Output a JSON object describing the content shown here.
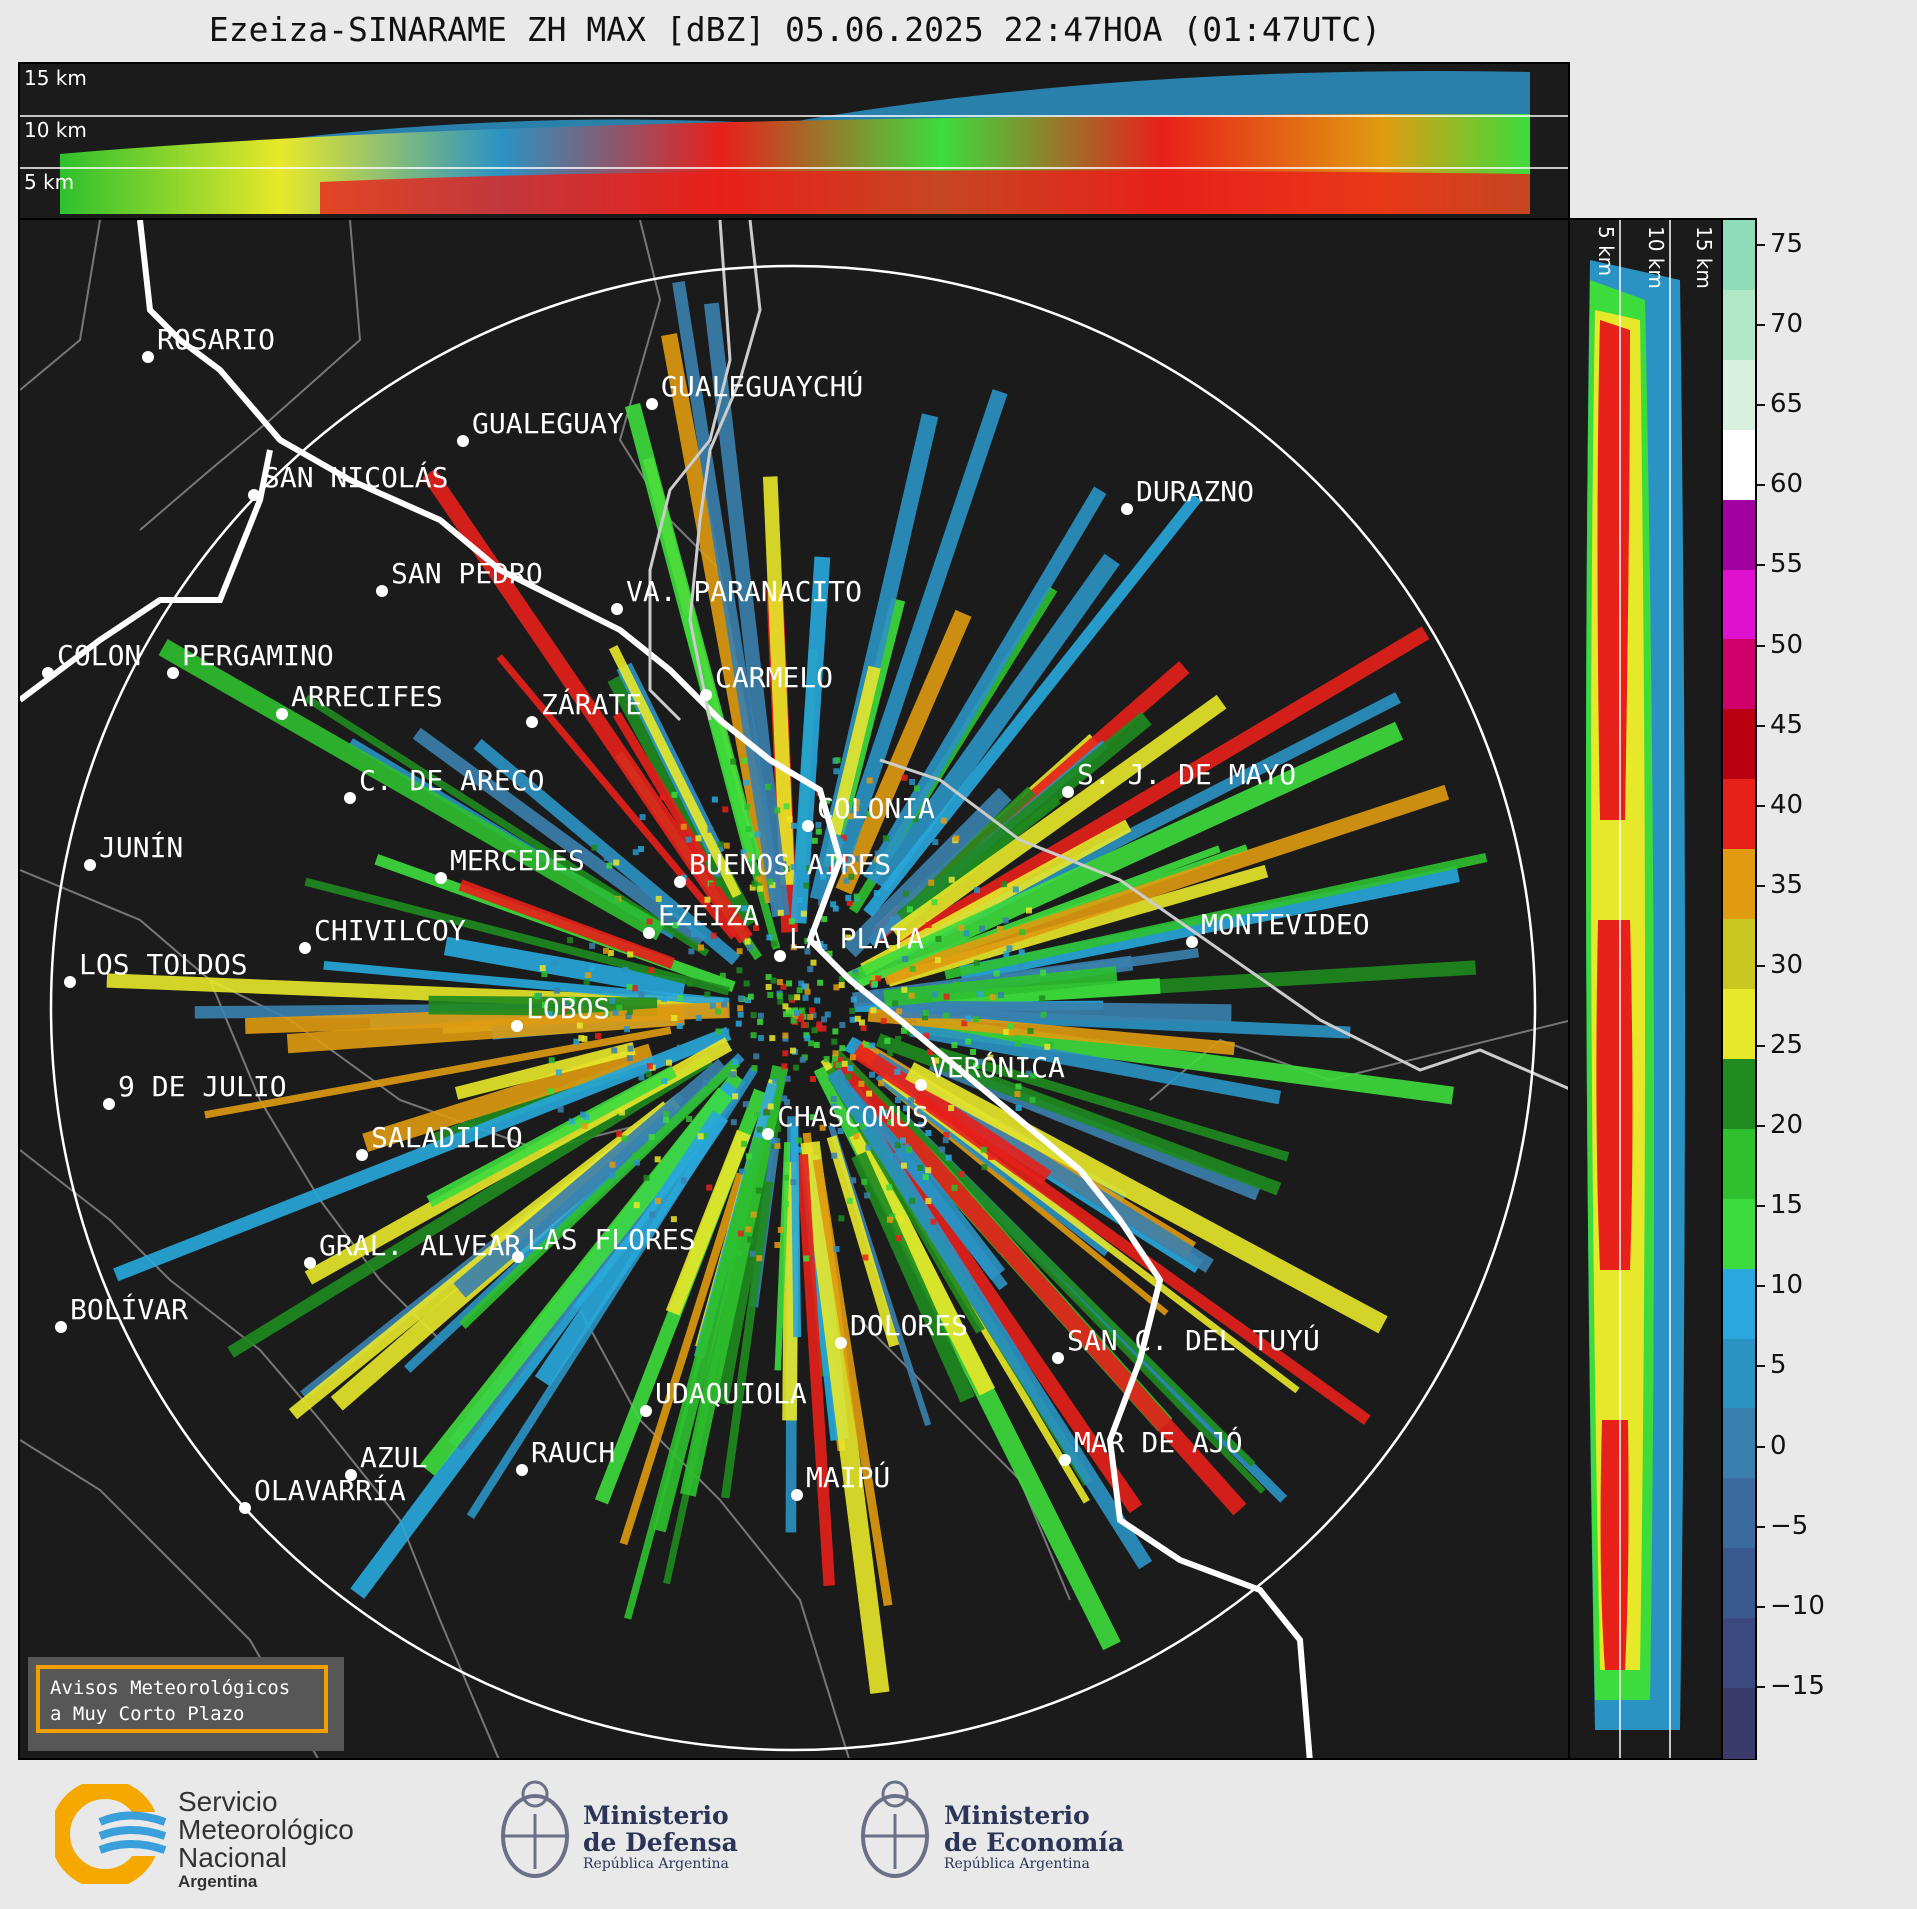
{
  "title": "Ezeiza-SINARAME ZH MAX [dBZ] 05.06.2025 22:47HOA (01:47UTC)",
  "top_panel": {
    "labels": [
      "15 km",
      "10 km",
      "5 km"
    ]
  },
  "side_panel": {
    "labels": [
      "5 km",
      "10 km",
      "15 km"
    ]
  },
  "colorbar": {
    "ticks": [
      "75",
      "70",
      "65",
      "60",
      "55",
      "50",
      "45",
      "40",
      "35",
      "30",
      "25",
      "20",
      "15",
      "10",
      "5",
      "0",
      "−5",
      "−10",
      "−15"
    ],
    "colors": [
      "#3b3b6b",
      "#3a4a80",
      "#3a5a8f",
      "#3a6d9e",
      "#3a80ae",
      "#2b93c4",
      "#28a8dc",
      "#3ddc3d",
      "#2ec02e",
      "#1f8a1f",
      "#e8e82a",
      "#c8c820",
      "#e09b10",
      "#e8201a",
      "#b80010",
      "#d0006a",
      "#e010d0",
      "#a000a0",
      "#ffffff",
      "#d8f0e0",
      "#b0e8c8",
      "#90dcb8"
    ]
  },
  "cities": [
    {
      "name": "ROSARIO"
    },
    {
      "name": "GUALEGUAYCHÚ"
    },
    {
      "name": "GUALEGUAY"
    },
    {
      "name": "SAN NICOLÁS"
    },
    {
      "name": "DURAZNO"
    },
    {
      "name": "SAN PEDRO"
    },
    {
      "name": "VA. PARANACITO"
    },
    {
      "name": "COLON"
    },
    {
      "name": "PERGAMINO"
    },
    {
      "name": "CARMELO"
    },
    {
      "name": "ARRECIFES"
    },
    {
      "name": "ZÁRATE"
    },
    {
      "name": "S. J. DE MAYO"
    },
    {
      "name": "C. DE ARECO"
    },
    {
      "name": "COLONIA"
    },
    {
      "name": "JUNÍN"
    },
    {
      "name": "BUENOS AIRES"
    },
    {
      "name": "MERCEDES"
    },
    {
      "name": "EZEIZA"
    },
    {
      "name": "MONTEVIDEO"
    },
    {
      "name": "CHIVILCOY"
    },
    {
      "name": "LA PLATA"
    },
    {
      "name": "LOS TOLDOS"
    },
    {
      "name": "LOBOS"
    },
    {
      "name": "VERÓNICA"
    },
    {
      "name": "9 DE JULIO"
    },
    {
      "name": "CHASCOMUS"
    },
    {
      "name": "SALADILLO"
    },
    {
      "name": "GRAL. ALVEAR"
    },
    {
      "name": "LAS FLORES"
    },
    {
      "name": "BOLÍVAR"
    },
    {
      "name": "DOLORES"
    },
    {
      "name": "SAN C. DEL TUYÚ"
    },
    {
      "name": "UDAQUIOLA"
    },
    {
      "name": "AZUL"
    },
    {
      "name": "RAUCH"
    },
    {
      "name": "MAR DE AJÓ"
    },
    {
      "name": "OLAVARRÍA"
    },
    {
      "name": "MAIPÚ"
    }
  ],
  "warning": {
    "line1": "Avisos Meteorológicos",
    "line2": "a Muy Corto Plazo"
  },
  "footer": {
    "smn": {
      "line1": "Servicio",
      "line2": "Meteorológico",
      "line3": "Nacional",
      "line4": "Argentina"
    },
    "defensa": {
      "line1": "Ministerio",
      "line2": "de Defensa",
      "line3": "República Argentina"
    },
    "economia": {
      "line1": "Ministerio",
      "line2": "de Economía",
      "line3": "República Argentina"
    }
  }
}
